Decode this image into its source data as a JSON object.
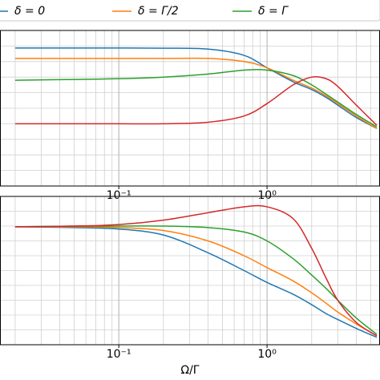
{
  "chart_data": [
    {
      "type": "line",
      "log_x": true,
      "grid": true,
      "x": [
        0.02,
        0.05,
        0.1,
        0.2,
        0.4,
        0.7,
        1,
        1.5,
        2,
        2.5,
        3,
        4,
        5.5
      ],
      "series": [
        {
          "name": "δ = 0",
          "color": "#1f77b4",
          "values": [
            0.887,
            0.887,
            0.887,
            0.886,
            0.88,
            0.84,
            0.76,
            0.67,
            0.62,
            0.57,
            0.52,
            0.44,
            0.37
          ]
        },
        {
          "name": "δ = Γ/2",
          "color": "#ff7f0e",
          "values": [
            0.82,
            0.82,
            0.82,
            0.82,
            0.82,
            0.8,
            0.76,
            0.68,
            0.63,
            0.58,
            0.53,
            0.45,
            0.37
          ]
        },
        {
          "name": "δ = Γ",
          "color": "#2ca02c",
          "values": [
            0.68,
            0.685,
            0.69,
            0.7,
            0.72,
            0.745,
            0.745,
            0.71,
            0.65,
            0.59,
            0.54,
            0.46,
            0.38
          ]
        },
        {
          "color": "#d62728",
          "values": [
            0.4,
            0.4,
            0.4,
            0.4,
            0.41,
            0.45,
            0.53,
            0.65,
            0.7,
            0.69,
            0.64,
            0.52,
            0.39
          ]
        }
      ],
      "xlim": [
        0.0158,
        5.78
      ],
      "xticks": [
        {
          "value": 0.1,
          "label": "10⁻¹"
        },
        {
          "value": 1,
          "label": "10⁰"
        }
      ],
      "xticks_minor": [
        0.02,
        0.03,
        0.04,
        0.05,
        0.06,
        0.07,
        0.08,
        0.09,
        0.2,
        0.3,
        0.4,
        0.5,
        0.6,
        0.7,
        0.8,
        0.9,
        2,
        3,
        4,
        5
      ],
      "ylim": [
        0,
        1
      ],
      "yticks": [
        0.1,
        0.2,
        0.3,
        0.4,
        0.5,
        0.6,
        0.7,
        0.8,
        0.9
      ]
    },
    {
      "type": "line",
      "log_x": true,
      "grid": true,
      "x": [
        0.02,
        0.05,
        0.1,
        0.2,
        0.4,
        0.7,
        1,
        1.5,
        2,
        2.5,
        3,
        4,
        5.5
      ],
      "series": [
        {
          "color": "#1f77b4",
          "values": [
            0.795,
            0.79,
            0.78,
            0.74,
            0.62,
            0.5,
            0.42,
            0.34,
            0.27,
            0.21,
            0.17,
            0.11,
            0.05
          ]
        },
        {
          "color": "#ff7f0e",
          "values": [
            0.795,
            0.795,
            0.79,
            0.77,
            0.7,
            0.6,
            0.52,
            0.43,
            0.35,
            0.28,
            0.22,
            0.14,
            0.06
          ]
        },
        {
          "color": "#2ca02c",
          "values": [
            0.795,
            0.8,
            0.8,
            0.8,
            0.79,
            0.76,
            0.7,
            0.58,
            0.47,
            0.38,
            0.3,
            0.18,
            0.07
          ]
        },
        {
          "color": "#d62728",
          "values": [
            0.795,
            0.8,
            0.81,
            0.84,
            0.89,
            0.93,
            0.93,
            0.85,
            0.65,
            0.45,
            0.3,
            0.15,
            0.06
          ]
        }
      ],
      "xlim": [
        0.0158,
        5.78
      ],
      "xticks": [
        {
          "value": 0.1,
          "label": "10⁻¹"
        },
        {
          "value": 1,
          "label": "10⁰"
        }
      ],
      "xticks_minor": [
        0.02,
        0.03,
        0.04,
        0.05,
        0.06,
        0.07,
        0.08,
        0.09,
        0.2,
        0.3,
        0.4,
        0.5,
        0.6,
        0.7,
        0.8,
        0.9,
        2,
        3,
        4,
        5
      ],
      "xlabel": "Ω/Γ",
      "ylim": [
        0,
        1
      ],
      "yticks": [
        0.1,
        0.2,
        0.3,
        0.4,
        0.5,
        0.6,
        0.7,
        0.8,
        0.9
      ]
    }
  ]
}
